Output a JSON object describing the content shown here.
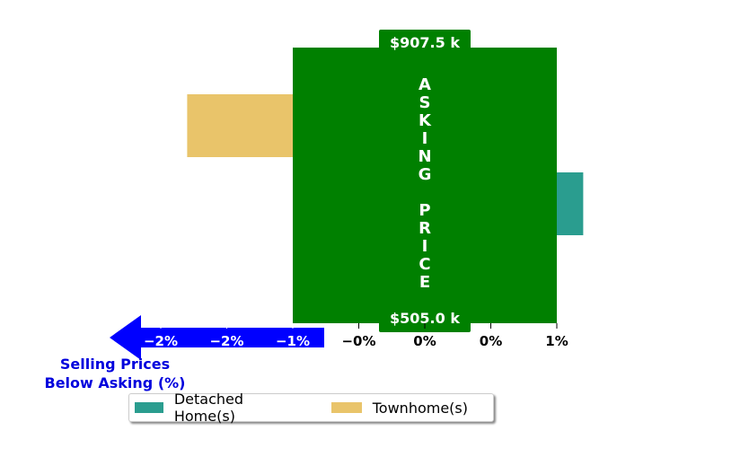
{
  "chart_data": {
    "type": "bar",
    "orientation": "horizontal",
    "title": "",
    "xlabel": "",
    "ylabel": "",
    "xlim": [
      -2.0,
      1.0
    ],
    "x_tick_labels": [
      "−2%",
      "−2%",
      "−1%",
      "−0%",
      "0%",
      "0%",
      "1%"
    ],
    "x_tick_values": [
      -2.0,
      -1.5,
      -1.0,
      -0.5,
      0.0,
      0.5,
      1.0
    ],
    "series": [
      {
        "name": "Townhome(s)",
        "color": "#e9c46a",
        "values": [
          -1.8
        ]
      },
      {
        "name": "Detached Home(s)",
        "color": "#2a9d8f",
        "values": [
          1.2
        ]
      }
    ],
    "asking_price_band": {
      "color": "#008000",
      "x_range": [
        -1.0,
        1.0
      ],
      "label": "ASKING PRICE",
      "top_price": "$907.5 k",
      "bottom_price": "$505.0 k"
    },
    "arrow": {
      "color": "#0000ff",
      "direction": "left",
      "caption_line1": "Selling Prices",
      "caption_line2": "Below Asking (%)"
    },
    "legend": {
      "placement": "bottom-left",
      "entries": [
        {
          "name": "Detached Home(s)",
          "color": "#2a9d8f"
        },
        {
          "name": "Townhome(s)",
          "color": "#e9c46a"
        }
      ]
    }
  }
}
